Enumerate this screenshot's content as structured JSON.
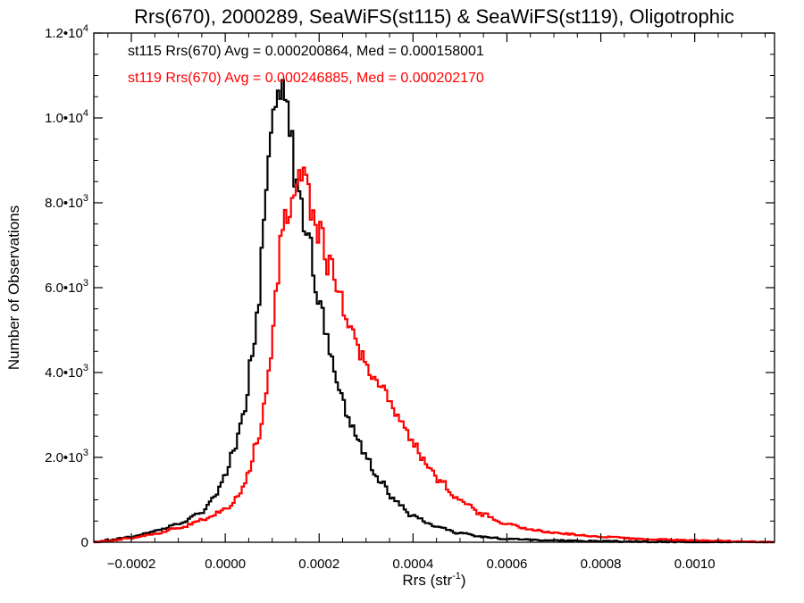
{
  "chart_data": {
    "type": "histogram",
    "title": "Rrs(670), 2000289, SeaWiFS(st115) & SeaWiFS(st119), Oligotrophic",
    "xlabel": "Rrs (str",
    "xlabel_exp": "-1",
    "xlabel_close": ")",
    "ylabel": "Number of Observations",
    "xlim": [
      -0.00028,
      0.00117
    ],
    "ylim": [
      0,
      12000
    ],
    "x_ticks": [
      {
        "value": -0.0002,
        "label": "−0.0002"
      },
      {
        "value": 0.0,
        "label": "0.0000"
      },
      {
        "value": 0.0002,
        "label": "0.0002"
      },
      {
        "value": 0.0004,
        "label": "0.0004"
      },
      {
        "value": 0.0006,
        "label": "0.0006"
      },
      {
        "value": 0.0008,
        "label": "0.0008"
      },
      {
        "value": 0.001,
        "label": "0.0010"
      }
    ],
    "y_ticks": [
      {
        "value": 0,
        "mant": "0",
        "exp": ""
      },
      {
        "value": 2000,
        "mant": "2.0•10",
        "exp": "3"
      },
      {
        "value": 4000,
        "mant": "4.0•10",
        "exp": "3"
      },
      {
        "value": 6000,
        "mant": "6.0•10",
        "exp": "3"
      },
      {
        "value": 8000,
        "mant": "8.0•10",
        "exp": "3"
      },
      {
        "value": 10000,
        "mant": "1.0•10",
        "exp": "4"
      },
      {
        "value": 12000,
        "mant": "1.2•10",
        "exp": "4"
      }
    ],
    "bin_width": 5e-06,
    "series": [
      {
        "name": "st115",
        "color": "#000000",
        "legend": "st115 Rrs(670) Avg = 0.000200864, Med = 0.000158001",
        "points": [
          [
            -0.00028,
            0
          ],
          [
            -0.00025,
            50
          ],
          [
            -0.0002,
            130
          ],
          [
            -0.00015,
            260
          ],
          [
            -0.0001,
            430
          ],
          [
            -5e-05,
            700
          ],
          [
            -2e-05,
            1150
          ],
          [
            0.0,
            1600
          ],
          [
            2e-05,
            2200
          ],
          [
            4e-05,
            3200
          ],
          [
            6e-05,
            4500
          ],
          [
            7e-05,
            5600
          ],
          [
            8e-05,
            7100
          ],
          [
            9e-05,
            8600
          ],
          [
            0.0001,
            9900
          ],
          [
            0.000115,
            10600
          ],
          [
            0.00013,
            10300
          ],
          [
            0.00014,
            9500
          ],
          [
            0.00015,
            8700
          ],
          [
            0.00016,
            8100
          ],
          [
            0.00017,
            7500
          ],
          [
            0.00018,
            6900
          ],
          [
            0.0002,
            5700
          ],
          [
            0.00022,
            4700
          ],
          [
            0.00024,
            3800
          ],
          [
            0.00026,
            3000
          ],
          [
            0.00028,
            2500
          ],
          [
            0.0003,
            2000
          ],
          [
            0.00033,
            1450
          ],
          [
            0.00036,
            1000
          ],
          [
            0.0004,
            620
          ],
          [
            0.00045,
            380
          ],
          [
            0.0005,
            210
          ],
          [
            0.00055,
            130
          ],
          [
            0.0006,
            80
          ],
          [
            0.0007,
            45
          ],
          [
            0.0008,
            22
          ],
          [
            0.0009,
            10
          ],
          [
            0.001,
            5
          ],
          [
            0.00117,
            0
          ]
        ]
      },
      {
        "name": "st119",
        "color": "#ff0000",
        "legend": "st119 Rrs(670) Avg = 0.000246885, Med = 0.000202170",
        "points": [
          [
            -0.00028,
            0
          ],
          [
            -0.00025,
            40
          ],
          [
            -0.0002,
            100
          ],
          [
            -0.00015,
            200
          ],
          [
            -0.0001,
            330
          ],
          [
            -5e-05,
            520
          ],
          [
            0.0,
            780
          ],
          [
            3e-05,
            1100
          ],
          [
            5e-05,
            1600
          ],
          [
            7e-05,
            2500
          ],
          [
            9e-05,
            3700
          ],
          [
            0.0001,
            4700
          ],
          [
            0.00011,
            6000
          ],
          [
            0.00012,
            7200
          ],
          [
            0.00013,
            7800
          ],
          [
            0.00015,
            8500
          ],
          [
            0.00016,
            8700
          ],
          [
            0.00017,
            8400
          ],
          [
            0.00018,
            8000
          ],
          [
            0.0002,
            7400
          ],
          [
            0.00022,
            6600
          ],
          [
            0.00024,
            5900
          ],
          [
            0.00026,
            5300
          ],
          [
            0.00028,
            4700
          ],
          [
            0.0003,
            4200
          ],
          [
            0.00033,
            3700
          ],
          [
            0.00036,
            3100
          ],
          [
            0.0004,
            2350
          ],
          [
            0.00043,
            1850
          ],
          [
            0.00046,
            1400
          ],
          [
            0.0005,
            1000
          ],
          [
            0.00055,
            650
          ],
          [
            0.0006,
            430
          ],
          [
            0.00065,
            300
          ],
          [
            0.0007,
            220
          ],
          [
            0.0008,
            130
          ],
          [
            0.0009,
            70
          ],
          [
            0.001,
            40
          ],
          [
            0.0011,
            20
          ],
          [
            0.00117,
            0
          ]
        ]
      }
    ]
  }
}
